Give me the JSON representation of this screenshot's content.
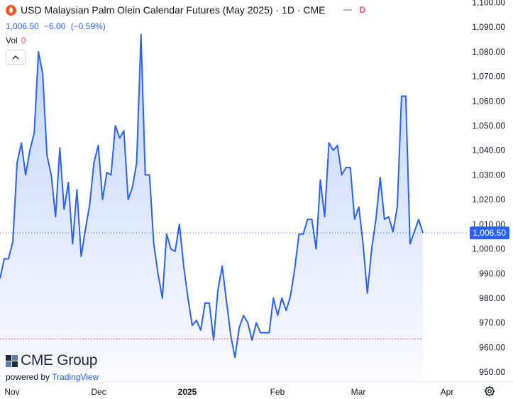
{
  "header": {
    "title": "USD Malaysian Palm Olein Calendar Futures (May 2025) · 1D · CME",
    "status_badge": "D",
    "last_price": "1,006.50",
    "change": "−6.00",
    "change_pct": "(−0.59%)",
    "volume_label": "Vol",
    "volume_value": "0"
  },
  "branding": {
    "logo_text": "CME Group",
    "powered_by": "powered by",
    "tradingview": "TradingView"
  },
  "icons": {
    "symbol": "palm-oil-drop-icon",
    "collapse": "chevron-up-icon",
    "settings": "gear-icon",
    "logo": "cme-globe-icon"
  },
  "colors": {
    "line": "#2962ff",
    "price_label_bg": "#2962ff",
    "negative": "#f7525f",
    "dotted_low_line": "#f7525f"
  },
  "chart_data": {
    "type": "area",
    "title": "USD Malaysian Palm Olein Calendar Futures (May 2025) · 1D · CME",
    "x_tick_labels": [
      "Nov",
      "Dec",
      "2025",
      "Feb",
      "Mar",
      "Apr"
    ],
    "y_ticks": [
      950,
      960,
      970,
      980,
      990,
      1000,
      1010,
      1020,
      1030,
      1040,
      1050,
      1060,
      1070,
      1080,
      1090,
      1100
    ],
    "y_tick_labels": [
      "950.00",
      "960.00",
      "970.00",
      "980.00",
      "990.00",
      "1,000.00",
      "1,010.00",
      "1,020.00",
      "1,030.00",
      "1,040.00",
      "1,050.00",
      "1,060.00",
      "1,070.00",
      "1,080.00",
      "1,090.00",
      "1,100.00"
    ],
    "ylim": [
      946,
      1101
    ],
    "last_value": 1006.5,
    "last_value_label": "1,006.50",
    "low_reference": 963.5,
    "grid": false,
    "series": [
      {
        "values": [
          988,
          996,
          996,
          1003,
          1035,
          1043,
          1030,
          1040,
          1047,
          1080,
          1071,
          1038,
          1030,
          1013,
          1041,
          1016,
          1027,
          1002,
          1024,
          997,
          1008,
          1018,
          1035,
          1042,
          1020,
          1031,
          1030,
          1050,
          1045,
          1048,
          1020,
          1025,
          1035,
          1087,
          1030,
          1030,
          1002,
          990,
          980,
          1006,
          1000,
          999,
          1010,
          993,
          980,
          969,
          971,
          967,
          978,
          978,
          963,
          983,
          993,
          979,
          965,
          956,
          968,
          973,
          970,
          963,
          970,
          966,
          966,
          966,
          980,
          973,
          980,
          975,
          981,
          992,
          1006,
          1006,
          1012,
          1012,
          1000,
          1028,
          1013,
          1043,
          1040,
          1042,
          1030,
          1033,
          1033,
          1012,
          1017,
          1002,
          982,
          1000,
          1012,
          1029,
          1012,
          1013,
          1007,
          1017,
          1062,
          1062,
          1002,
          1007,
          1012,
          1006.5
        ]
      }
    ]
  }
}
